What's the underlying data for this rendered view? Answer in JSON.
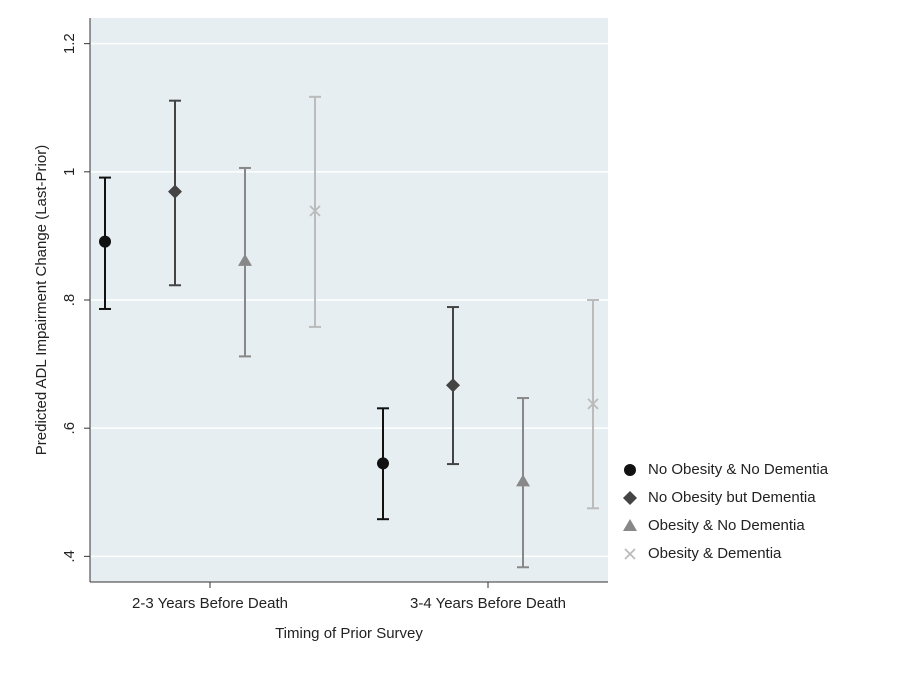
{
  "chart_data": {
    "type": "errorbar",
    "y_label": "Predicted ADL Impairment Change (Last-Prior)",
    "x_label": "Timing of Prior Survey",
    "categories": [
      "2-3 Years Before Death",
      "3-4 Years Before Death"
    ],
    "ylim": [
      0.36,
      1.24
    ],
    "yticks": [
      {
        "value": 0.4,
        "label": ".4"
      },
      {
        "value": 0.6,
        "label": ".6"
      },
      {
        "value": 0.8,
        "label": ".8"
      },
      1,
      1.2
    ],
    "grid": true,
    "legend_position": "right",
    "series": [
      {
        "name": "No Obesity & No Dementia",
        "color": "#111111",
        "marker": "circle",
        "values": [
          0.891,
          0.545
        ],
        "lower": [
          0.786,
          0.458
        ],
        "upper": [
          0.991,
          0.631
        ]
      },
      {
        "name": "No Obesity but Dementia",
        "color": "#444444",
        "marker": "diamond",
        "values": [
          0.969,
          0.667
        ],
        "lower": [
          0.823,
          0.544
        ],
        "upper": [
          1.111,
          0.789
        ]
      },
      {
        "name": "Obesity & No Dementia",
        "color": "#888888",
        "marker": "triangle",
        "values": [
          0.861,
          0.517
        ],
        "lower": [
          0.712,
          0.383
        ],
        "upper": [
          1.006,
          0.647
        ]
      },
      {
        "name": "Obesity & Dementia",
        "color": "#bbbbbb",
        "marker": "x",
        "values": [
          0.939,
          0.638
        ],
        "lower": [
          0.758,
          0.475
        ],
        "upper": [
          1.117,
          0.8
        ]
      }
    ]
  }
}
